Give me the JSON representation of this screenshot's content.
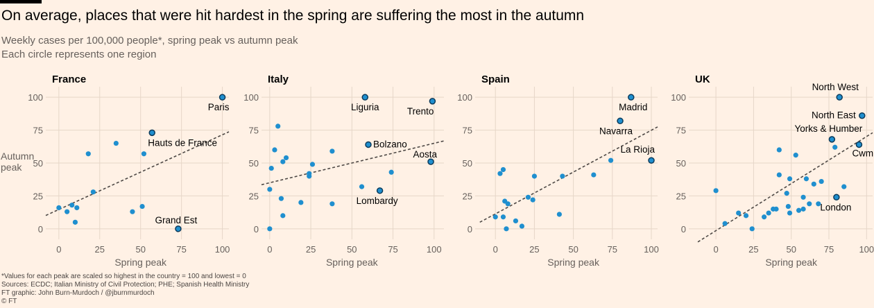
{
  "header": {
    "title": "On average, places that were hit hardest in the spring are suffering the most in the autumn",
    "subtitle_1": "Weekly cases per 100,000 people*, spring peak vs autumn peak",
    "subtitle_2": "Each circle represents one region"
  },
  "footer": {
    "note": "*Values for each peak are scaled so highest in the country = 100 and lowest = 0",
    "sources": "Sources: ECDC; Italian Ministry of Civil Protection; PHE; Spanish Health Ministry",
    "credit": "FT graphic: John Burn-Murdoch / @jburnmurdoch",
    "copyright": "© FT"
  },
  "colors": {
    "background": "#fff1e5",
    "point": "#1f8fcf",
    "point_outline": "#0c3a5a",
    "grid": "#e6d6c8",
    "trend": "#4d4845"
  },
  "chart_data": [
    {
      "type": "scatter",
      "title": "France",
      "xlabel": "Spring peak",
      "ylabel": "Autumn peak",
      "xlim": [
        -8,
        104
      ],
      "ylim": [
        -8,
        108
      ],
      "xticks": [
        0,
        25,
        50,
        75,
        100
      ],
      "yticks": [
        0,
        25,
        50,
        75,
        100
      ],
      "trend": [
        [
          -10,
          9
        ],
        [
          108,
          76
        ]
      ],
      "points": [
        {
          "x": 0,
          "y": 16
        },
        {
          "x": 5,
          "y": 13
        },
        {
          "x": 8,
          "y": 18
        },
        {
          "x": 10,
          "y": 5
        },
        {
          "x": 11,
          "y": 16
        },
        {
          "x": 18,
          "y": 57
        },
        {
          "x": 21,
          "y": 28
        },
        {
          "x": 35,
          "y": 65
        },
        {
          "x": 45,
          "y": 13
        },
        {
          "x": 51,
          "y": 17
        },
        {
          "x": 52,
          "y": 57
        }
      ],
      "labelled": [
        {
          "x": 100,
          "y": 100,
          "label": "Paris",
          "anchor": "end",
          "dx": 10,
          "dy": 19
        },
        {
          "x": 57,
          "y": 73,
          "label": "Hauts de France",
          "anchor": "start",
          "dx": -6,
          "dy": 19
        },
        {
          "x": 73,
          "y": 0,
          "label": "Grand Est",
          "anchor": "middle",
          "dx": -3,
          "dy": -8
        }
      ]
    },
    {
      "type": "scatter",
      "title": "Italy",
      "xlabel": "Spring peak",
      "ylabel": "",
      "xlim": [
        -5,
        106
      ],
      "ylim": [
        -8,
        108
      ],
      "xticks": [
        0,
        25,
        50,
        75,
        100
      ],
      "yticks": [
        0,
        25,
        50,
        75,
        100
      ],
      "trend": [
        [
          -10,
          32
        ],
        [
          120,
          71
        ]
      ],
      "points": [
        {
          "x": 0,
          "y": 0
        },
        {
          "x": 0,
          "y": 30
        },
        {
          "x": 1,
          "y": 46
        },
        {
          "x": 3,
          "y": 60
        },
        {
          "x": 5,
          "y": 78
        },
        {
          "x": 7,
          "y": 23
        },
        {
          "x": 8,
          "y": 10
        },
        {
          "x": 8,
          "y": 51
        },
        {
          "x": 10,
          "y": 54
        },
        {
          "x": 19,
          "y": 20
        },
        {
          "x": 24,
          "y": 40
        },
        {
          "x": 24,
          "y": 42
        },
        {
          "x": 26,
          "y": 49
        },
        {
          "x": 38,
          "y": 19
        },
        {
          "x": 38,
          "y": 59
        },
        {
          "x": 56,
          "y": 32
        },
        {
          "x": 74,
          "y": 43
        }
      ],
      "labelled": [
        {
          "x": 58,
          "y": 100,
          "label": "Liguria",
          "anchor": "middle",
          "dx": 0,
          "dy": 19
        },
        {
          "x": 99,
          "y": 97,
          "label": "Trento",
          "anchor": "end",
          "dx": 2,
          "dy": 19
        },
        {
          "x": 60,
          "y": 64,
          "label": "Bolzano",
          "anchor": "start",
          "dx": 7,
          "dy": 4
        },
        {
          "x": 98,
          "y": 51,
          "label": "Aosta",
          "anchor": "end",
          "dx": 9,
          "dy": -6
        },
        {
          "x": 67,
          "y": 29,
          "label": "Lombardy",
          "anchor": "middle",
          "dx": -4,
          "dy": 19
        }
      ]
    },
    {
      "type": "scatter",
      "title": "Spain",
      "xlabel": "Spring peak",
      "ylabel": "",
      "xlim": [
        -13,
        104
      ],
      "ylim": [
        -8,
        108
      ],
      "xticks": [
        0,
        25,
        50,
        75,
        100
      ],
      "yticks": [
        0,
        25,
        50,
        75,
        100
      ],
      "trend": [
        [
          -10,
          5
        ],
        [
          108,
          80
        ]
      ],
      "points": [
        {
          "x": 0,
          "y": 9
        },
        {
          "x": 3,
          "y": 42
        },
        {
          "x": 5,
          "y": 9
        },
        {
          "x": 5,
          "y": 45
        },
        {
          "x": 6,
          "y": 21
        },
        {
          "x": 7,
          "y": 0
        },
        {
          "x": 8,
          "y": 19
        },
        {
          "x": 13,
          "y": 6
        },
        {
          "x": 17,
          "y": 2
        },
        {
          "x": 21,
          "y": 24
        },
        {
          "x": 24,
          "y": 22
        },
        {
          "x": 25,
          "y": 40
        },
        {
          "x": 41,
          "y": 11
        },
        {
          "x": 43,
          "y": 40
        },
        {
          "x": 63,
          "y": 41
        },
        {
          "x": 74,
          "y": 52
        }
      ],
      "labelled": [
        {
          "x": 87,
          "y": 100,
          "label": "Madrid",
          "anchor": "middle",
          "dx": 3,
          "dy": 19
        },
        {
          "x": 80,
          "y": 82,
          "label": "Navarra",
          "anchor": "middle",
          "dx": -6,
          "dy": 19
        },
        {
          "x": 100,
          "y": 52,
          "label": "La Rioja",
          "anchor": "end",
          "dx": 5,
          "dy": -11
        }
      ]
    },
    {
      "type": "scatter",
      "title": "UK",
      "xlabel": "Spring peak",
      "ylabel": "",
      "xlim": [
        -18,
        104
      ],
      "ylim": [
        -8,
        108
      ],
      "xticks": [
        0,
        25,
        50,
        75,
        100
      ],
      "yticks": [
        0,
        25,
        50,
        75,
        100
      ],
      "trend": [
        [
          -12,
          -10
        ],
        [
          104,
          73
        ]
      ],
      "points": [
        {
          "x": 0,
          "y": 29
        },
        {
          "x": 6,
          "y": 4
        },
        {
          "x": 15,
          "y": 12
        },
        {
          "x": 20,
          "y": 10
        },
        {
          "x": 24,
          "y": 0
        },
        {
          "x": 32,
          "y": 9
        },
        {
          "x": 35,
          "y": 12
        },
        {
          "x": 38,
          "y": 15
        },
        {
          "x": 40,
          "y": 15
        },
        {
          "x": 42,
          "y": 60
        },
        {
          "x": 42,
          "y": 41
        },
        {
          "x": 47,
          "y": 27
        },
        {
          "x": 48,
          "y": 17
        },
        {
          "x": 49,
          "y": 38
        },
        {
          "x": 49,
          "y": 12
        },
        {
          "x": 53,
          "y": 56
        },
        {
          "x": 55,
          "y": 14
        },
        {
          "x": 58,
          "y": 15
        },
        {
          "x": 58,
          "y": 24
        },
        {
          "x": 60,
          "y": 38
        },
        {
          "x": 62,
          "y": 19
        },
        {
          "x": 65,
          "y": 34
        },
        {
          "x": 68,
          "y": 19
        },
        {
          "x": 70,
          "y": 36
        },
        {
          "x": 79,
          "y": 62
        },
        {
          "x": 85,
          "y": 32
        }
      ],
      "labelled": [
        {
          "x": 82,
          "y": 100,
          "label": "North West",
          "anchor": "middle",
          "dx": -6,
          "dy": -10
        },
        {
          "x": 97,
          "y": 86,
          "label": "North East",
          "anchor": "end",
          "dx": -9,
          "dy": 4
        },
        {
          "x": 77,
          "y": 68,
          "label": "Yorks & Humber",
          "anchor": "middle",
          "dx": -5,
          "dy": -11
        },
        {
          "x": 95,
          "y": 64,
          "label": "Cwm Taf",
          "anchor": "start",
          "dx": -10,
          "dy": 17
        },
        {
          "x": 80,
          "y": 24,
          "label": "London",
          "anchor": "middle",
          "dx": -1,
          "dy": 19
        }
      ]
    }
  ]
}
